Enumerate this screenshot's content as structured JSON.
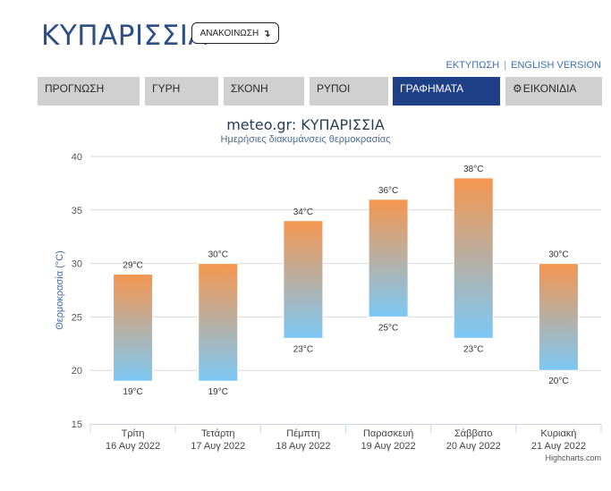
{
  "header": {
    "site_title": "ΚΥΠΑΡΙΣΣΙΑ",
    "announce_label": "ΑΝΑΚΟΙΝΩΣΗ",
    "announce_icon": "arrow-turn-down-icon"
  },
  "toplinks": {
    "print_label": "ΕΚΤΥΠΩΣΗ",
    "separator": "|",
    "english_label": "ENGLISH VERSION"
  },
  "tabs": [
    {
      "label": "ΠΡΟΓΝΩΣΗ",
      "active": false
    },
    {
      "label": "ΓΥΡΗ",
      "active": false
    },
    {
      "label": "ΣΚΟΝΗ",
      "active": false
    },
    {
      "label": "ΡΥΠΟΙ",
      "active": false
    },
    {
      "label": "ΓΡΑΦΗΜΑΤΑ",
      "active": true
    },
    {
      "label": "ΕΙΚΟΝΙΔΙΑ",
      "active": false,
      "icon": "gear-icon"
    }
  ],
  "chart_data": {
    "type": "bar",
    "subtype": "columnrange",
    "title": "meteo.gr: ΚΥΠΑΡΙΣΣΙΑ",
    "subtitle": "Ημερήσιες διακυμάνσεις θερμοκρασίας",
    "ylabel": "Θερμοκρασία (°C)",
    "ylim": [
      15,
      40
    ],
    "yticks": [
      15,
      20,
      25,
      30,
      35,
      40
    ],
    "grid": true,
    "legend": "none",
    "categories": [
      {
        "day": "Τρίτη",
        "date": "16 Αυγ 2022"
      },
      {
        "day": "Τετάρτη",
        "date": "17 Αυγ 2022"
      },
      {
        "day": "Πέμπτη",
        "date": "18 Αυγ 2022"
      },
      {
        "day": "Παρασκευή",
        "date": "19 Αυγ 2022"
      },
      {
        "day": "Σάββατο",
        "date": "20 Αυγ 2022"
      },
      {
        "day": "Κυριακή",
        "date": "21 Αυγ 2022"
      }
    ],
    "series": [
      {
        "low": [
          19,
          19,
          23,
          25,
          23,
          20
        ],
        "high": [
          29,
          30,
          34,
          36,
          38,
          30
        ]
      }
    ],
    "label_suffix": "°C",
    "colors": {
      "high": "#f5964f",
      "low": "#7cc8f6",
      "grid": "#d9d9d9",
      "axis": "#ccd6eb"
    }
  },
  "credits": "Highcharts.com"
}
